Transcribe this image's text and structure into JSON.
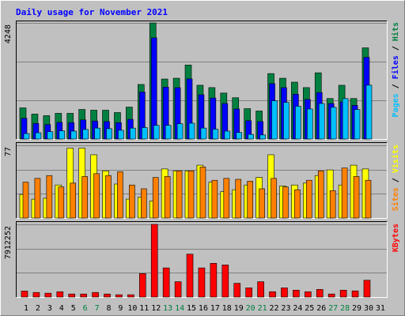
{
  "chart_data": {
    "type": "bar",
    "title": "Daily usage for November 2021",
    "categories": [
      "1",
      "2",
      "3",
      "4",
      "5",
      "6",
      "7",
      "8",
      "9",
      "10",
      "11",
      "12",
      "13",
      "14",
      "15",
      "16",
      "17",
      "18",
      "19",
      "20",
      "21",
      "22",
      "23",
      "24",
      "25",
      "26",
      "27",
      "28",
      "29",
      "30",
      "31"
    ],
    "category_colors": [
      "#000000",
      "#000000",
      "#000000",
      "#000000",
      "#000000",
      "#008040",
      "#008040",
      "#000000",
      "#000000",
      "#000000",
      "#000000",
      "#000000",
      "#008040",
      "#008040",
      "#000000",
      "#000000",
      "#000000",
      "#000000",
      "#000000",
      "#008040",
      "#008040",
      "#000000",
      "#000000",
      "#000000",
      "#000000",
      "#000000",
      "#008040",
      "#008040",
      "#000000",
      "#000000",
      "#000000"
    ],
    "legend_separator": " / ",
    "panels": [
      {
        "ylim": [
          0,
          4248
        ],
        "series": [
          {
            "name": "Hits",
            "color": "#008040",
            "values": [
              1140,
              912,
              855,
              941,
              941,
              1083,
              1055,
              1055,
              969,
              1169,
              1996,
              4248,
              2195,
              2224,
              2709,
              1968,
              1882,
              1682,
              1511,
              1112,
              1026,
              2395,
              2224,
              2081,
              1882,
              2423,
              1482,
              1967,
              1482,
              3336,
              0
            ]
          },
          {
            "name": "Files",
            "color": "#0000ff",
            "values": [
              760,
              570,
              530,
              610,
              600,
              700,
              660,
              640,
              600,
              720,
              1720,
              3700,
              1900,
              1880,
              2200,
              1620,
              1500,
              1300,
              1100,
              670,
              640,
              2030,
              1880,
              1640,
              1450,
              1700,
              1300,
              1360,
              1230,
              2990,
              0
            ]
          },
          {
            "name": "Pages",
            "color": "#00c0ff",
            "values": [
              200,
              230,
              270,
              300,
              290,
              350,
              400,
              380,
              320,
              400,
              420,
              500,
              500,
              560,
              580,
              400,
              360,
              290,
              240,
              170,
              150,
              1400,
              1340,
              1200,
              1100,
              1300,
              1160,
              1480,
              1080,
              1970,
              0
            ]
          }
        ]
      },
      {
        "ylim": [
          0,
          77
        ],
        "series": [
          {
            "name": "Visits",
            "color": "#ffff00",
            "values": [
              25,
              20,
              21,
              35,
              74,
              74,
              67,
              50,
              36,
              20,
              22,
              18,
              52,
              50,
              50,
              56,
              38,
              28,
              30,
              35,
              43,
              67,
              34,
              35,
              37,
              45,
              51,
              35,
              56,
              52,
              0
            ]
          },
          {
            "name": "Sites",
            "color": "#ff8000",
            "values": [
              38,
              42,
              45,
              33,
              37,
              44,
              47,
              45,
              49,
              35,
              31,
              43,
              44,
              50,
              50,
              54,
              40,
              42,
              41,
              39,
              31,
              42,
              33,
              30,
              40,
              50,
              29,
              53,
              44,
              40,
              0
            ]
          }
        ]
      },
      {
        "ylim": [
          0,
          7912252
        ],
        "series": [
          {
            "name": "KBytes",
            "color": "#ff0000",
            "values": [
              650000,
              500000,
              420000,
              580000,
              330000,
              330000,
              500000,
              330000,
              250000,
              250000,
              2550000,
              7912252,
              3170000,
              1670000,
              4670000,
              3170000,
              3670000,
              3500000,
              1500000,
              1000000,
              1670000,
              580000,
              1000000,
              750000,
              580000,
              830000,
              330000,
              750000,
              670000,
              1830000,
              0
            ]
          }
        ]
      }
    ]
  }
}
